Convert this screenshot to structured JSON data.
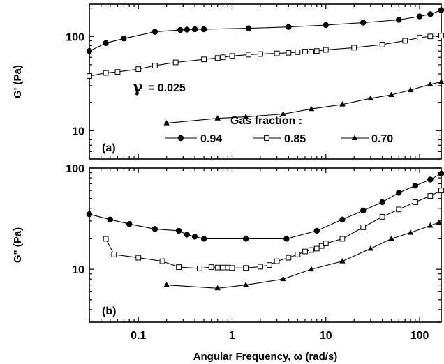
{
  "chart_data": [
    {
      "id": "a",
      "type": "line",
      "panel_label": "(a)",
      "ylabel": "G' (Pa)",
      "xlabel": "",
      "x_scale": "log",
      "y_scale": "log",
      "xlim": [
        0.03,
        170
      ],
      "ylim": [
        5,
        220
      ],
      "y_ticks": [
        {
          "value": 10,
          "label": "10"
        },
        {
          "value": 100,
          "label": "100"
        }
      ],
      "annotation": {
        "symbol": "γ",
        "text": "= 0.025"
      },
      "legend": {
        "title": "Gas fraction :",
        "placement": "bottom"
      },
      "series": [
        {
          "name": "0.94",
          "marker": "filled-circle",
          "x": [
            0.03,
            0.045,
            0.07,
            0.15,
            0.28,
            0.33,
            0.4,
            0.5,
            1.5,
            4,
            10,
            25,
            60,
            100,
            130,
            170
          ],
          "y": [
            70,
            85,
            95,
            112,
            117,
            118,
            119,
            119,
            122,
            126,
            132,
            140,
            150,
            163,
            172,
            190
          ]
        },
        {
          "name": "0.85",
          "marker": "open-square",
          "x": [
            0.03,
            0.045,
            0.06,
            0.1,
            0.15,
            0.25,
            0.5,
            0.7,
            0.8,
            1,
            1.5,
            2,
            3,
            4,
            5,
            6,
            7,
            8,
            10,
            20,
            40,
            70,
            100,
            130,
            170
          ],
          "y": [
            38,
            41,
            42,
            45,
            49,
            53,
            57,
            59,
            60,
            62,
            64,
            65,
            66,
            67,
            68,
            69,
            69,
            70,
            72,
            76,
            82,
            90,
            97,
            100,
            102
          ]
        },
        {
          "name": "0.70",
          "marker": "filled-triangle",
          "x": [
            0.2,
            0.7,
            1.4,
            3.5,
            7,
            15,
            30,
            50,
            80,
            130,
            170
          ],
          "y": [
            12,
            13.5,
            14,
            15,
            17,
            19,
            22,
            24,
            27,
            31,
            33
          ]
        }
      ]
    },
    {
      "id": "b",
      "type": "line",
      "panel_label": "(b)",
      "ylabel": "G\" (Pa)",
      "xlabel": "Angular Frequency,  ω (rad/s)",
      "x_scale": "log",
      "y_scale": "log",
      "xlim": [
        0.03,
        170
      ],
      "ylim": [
        3,
        100
      ],
      "x_ticks": [
        {
          "value": 0.1,
          "label": "0.1"
        },
        {
          "value": 1,
          "label": "1"
        },
        {
          "value": 10,
          "label": "10"
        },
        {
          "value": 100,
          "label": "100"
        }
      ],
      "y_ticks": [
        {
          "value": 10,
          "label": "10"
        },
        {
          "value": 100,
          "label": "100"
        }
      ],
      "series": [
        {
          "name": "0.94",
          "marker": "filled-circle",
          "x": [
            0.03,
            0.05,
            0.08,
            0.15,
            0.27,
            0.33,
            0.4,
            0.5,
            1.4,
            3.8,
            8,
            15,
            25,
            40,
            60,
            90,
            130,
            170
          ],
          "y": [
            35,
            31,
            28,
            25,
            24,
            22,
            21,
            20,
            20,
            20,
            24,
            31,
            38,
            46,
            57,
            67,
            77,
            88
          ]
        },
        {
          "name": "0.85",
          "marker": "open-square",
          "x": [
            0.045,
            0.055,
            0.1,
            0.18,
            0.27,
            0.45,
            0.6,
            0.7,
            0.8,
            0.9,
            1,
            1.4,
            2,
            2.5,
            3,
            4,
            5,
            6,
            7,
            8,
            9,
            10,
            15,
            25,
            40,
            60,
            90,
            130,
            170
          ],
          "y": [
            20,
            14,
            13,
            12,
            10.5,
            10.2,
            10.5,
            10.4,
            10.4,
            10.4,
            10.3,
            10.3,
            10.6,
            11,
            12,
            13,
            14,
            15,
            15.5,
            16,
            17,
            18,
            20,
            26,
            33,
            39,
            46,
            53,
            60
          ]
        },
        {
          "name": "0.70",
          "marker": "filled-triangle",
          "x": [
            0.2,
            0.7,
            1.4,
            3.5,
            7,
            15,
            30,
            50,
            80,
            130,
            160
          ],
          "y": [
            7,
            6.5,
            7,
            8,
            10,
            12,
            16,
            20,
            23,
            27,
            29
          ]
        }
      ]
    }
  ]
}
